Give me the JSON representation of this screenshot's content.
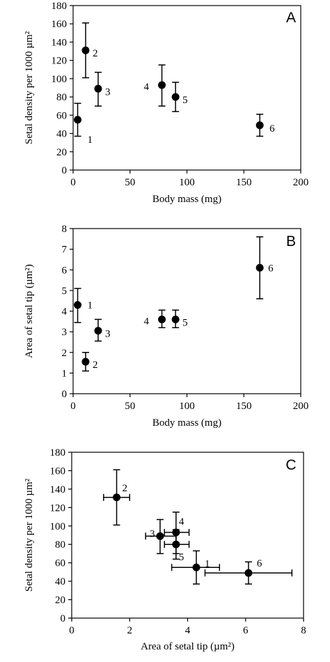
{
  "chart_data": [
    {
      "type": "scatter",
      "panel_label": "A",
      "xlabel": "Body mass (mg)",
      "ylabel": "Setal density per 1000 µm²",
      "xlim": [
        0,
        200
      ],
      "ylim": [
        0,
        180
      ],
      "xticks": [
        "0",
        "50",
        "100",
        "150",
        "200"
      ],
      "yticks": [
        "0",
        "20",
        "40",
        "60",
        "80",
        "100",
        "120",
        "140",
        "160",
        "180"
      ],
      "points": [
        {
          "label": "1",
          "x": 4,
          "y": 55,
          "ylo": 37,
          "yhi": 73
        },
        {
          "label": "2",
          "x": 11,
          "y": 131,
          "ylo": 101,
          "yhi": 161
        },
        {
          "label": "3",
          "x": 22,
          "y": 89,
          "ylo": 70,
          "yhi": 107
        },
        {
          "label": "4",
          "x": 78,
          "y": 93,
          "ylo": 70,
          "yhi": 115
        },
        {
          "label": "5",
          "x": 90,
          "y": 80,
          "ylo": 64,
          "yhi": 96
        },
        {
          "label": "6",
          "x": 164,
          "y": 49,
          "ylo": 37,
          "yhi": 61
        }
      ]
    },
    {
      "type": "scatter",
      "panel_label": "B",
      "xlabel": "Body mass (mg)",
      "ylabel": "Area of setal tip (µm²)",
      "xlim": [
        0,
        200
      ],
      "ylim": [
        0,
        8
      ],
      "xticks": [
        "0",
        "50",
        "100",
        "150",
        "200"
      ],
      "yticks": [
        "0",
        "1",
        "2",
        "3",
        "4",
        "5",
        "6",
        "7",
        "8"
      ],
      "points": [
        {
          "label": "1",
          "x": 4,
          "y": 4.3,
          "ylo": 3.45,
          "yhi": 5.1
        },
        {
          "label": "2",
          "x": 11,
          "y": 1.55,
          "ylo": 1.1,
          "yhi": 2.0
        },
        {
          "label": "3",
          "x": 22,
          "y": 3.05,
          "ylo": 2.55,
          "yhi": 3.6
        },
        {
          "label": "4",
          "x": 78,
          "y": 3.6,
          "ylo": 3.2,
          "yhi": 4.05
        },
        {
          "label": "5",
          "x": 90,
          "y": 3.6,
          "ylo": 3.2,
          "yhi": 4.05
        },
        {
          "label": "6",
          "x": 164,
          "y": 6.1,
          "ylo": 4.6,
          "yhi": 7.6
        }
      ]
    },
    {
      "type": "scatter",
      "panel_label": "C",
      "xlabel": "Area of setal tip (µm²)",
      "ylabel": "Setal density per 1000 µm²",
      "xlim": [
        0,
        8
      ],
      "ylim": [
        0,
        180
      ],
      "xticks": [
        "0",
        "2",
        "4",
        "6",
        "8"
      ],
      "yticks": [
        "0",
        "20",
        "40",
        "60",
        "80",
        "100",
        "120",
        "140",
        "160",
        "180"
      ],
      "points": [
        {
          "label": "1",
          "x": 4.3,
          "y": 55,
          "xlo": 3.45,
          "xhi": 5.1,
          "ylo": 37,
          "yhi": 73
        },
        {
          "label": "2",
          "x": 1.55,
          "y": 131,
          "xlo": 1.1,
          "xhi": 2.0,
          "ylo": 101,
          "yhi": 161
        },
        {
          "label": "3",
          "x": 3.05,
          "y": 89,
          "xlo": 2.55,
          "xhi": 3.6,
          "ylo": 70,
          "yhi": 107
        },
        {
          "label": "4",
          "x": 3.6,
          "y": 93,
          "xlo": 3.2,
          "xhi": 4.05,
          "ylo": 70,
          "yhi": 115
        },
        {
          "label": "5",
          "x": 3.6,
          "y": 80,
          "xlo": 3.2,
          "xhi": 4.05,
          "ylo": 64,
          "yhi": 96
        },
        {
          "label": "6",
          "x": 6.1,
          "y": 49,
          "xlo": 4.6,
          "xhi": 7.6,
          "ylo": 37,
          "yhi": 61
        }
      ]
    }
  ]
}
